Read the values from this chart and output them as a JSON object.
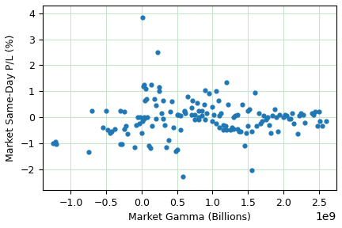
{
  "title": "",
  "xlabel": "Market Gamma (Billions)",
  "ylabel": "Market Same-Day P/L (%)",
  "xlim": [
    -1400000000.0,
    2750000000.0
  ],
  "ylim": [
    -2.8,
    4.3
  ],
  "scatter_color": "#1f77b4",
  "marker_size": 12,
  "grid_color": "#c8e6c9",
  "figsize": [
    4.32,
    2.88
  ],
  "dpi": 100,
  "x_data": [
    -1250000000.0,
    -1220000000.0,
    -1200000000.0,
    -750000000.0,
    -700000000.0,
    -550000000.0,
    -500000000.0,
    -480000000.0,
    -450000000.0,
    -420000000.0,
    -380000000.0,
    -300000000.0,
    -280000000.0,
    -250000000.0,
    -220000000.0,
    -200000000.0,
    -100000000.0,
    -80000000.0,
    -50000000.0,
    10000000.0,
    20000000.0,
    30000000.0,
    40000000.0,
    50000000.0,
    60000000.0,
    70000000.0,
    80000000.0,
    100000000.0,
    120000000.0,
    130000000.0,
    150000000.0,
    180000000.0,
    200000000.0,
    220000000.0,
    250000000.0,
    280000000.0,
    300000000.0,
    320000000.0,
    350000000.0,
    380000000.0,
    400000000.0,
    420000000.0,
    450000000.0,
    480000000.0,
    500000000.0,
    520000000.0,
    550000000.0,
    580000000.0,
    600000000.0,
    620000000.0,
    650000000.0,
    700000000.0,
    720000000.0,
    750000000.0,
    780000000.0,
    800000000.0,
    850000000.0,
    880000000.0,
    900000000.0,
    920000000.0,
    950000000.0,
    1000000000.0,
    1020000000.0,
    1050000000.0,
    1080000000.0,
    1100000000.0,
    1120000000.0,
    1150000000.0,
    1180000000.0,
    1200000000.0,
    1220000000.0,
    1250000000.0,
    1280000000.0,
    1300000000.0,
    1320000000.0,
    1350000000.0,
    1380000000.0,
    1400000000.0,
    1420000000.0,
    1450000000.0,
    1480000000.0,
    1500000000.0,
    1520000000.0,
    1550000000.0,
    1600000000.0,
    1620000000.0,
    1650000000.0,
    1680000000.0,
    1700000000.0,
    1720000000.0,
    1750000000.0,
    1780000000.0,
    1800000000.0,
    1820000000.0,
    1850000000.0,
    1880000000.0,
    1900000000.0,
    1920000000.0,
    1950000000.0,
    2000000000.0,
    2020000000.0,
    2050000000.0,
    2080000000.0,
    2100000000.0,
    2120000000.0,
    2150000000.0,
    2200000000.0,
    2220000000.0,
    2250000000.0,
    2280000000.0,
    2300000000.0,
    2400000000.0,
    2420000000.0,
    2450000000.0,
    2480000000.0,
    2500000000.0,
    2520000000.0,
    2550000000.0,
    2600000000.0,
    0.0,
    10000000.0,
    -20000000.0,
    30000000.0,
    -30000000.0,
    500000000.0,
    550000000.0,
    600000000.0,
    1000000000.0,
    1050000000.0,
    1100000000.0,
    1150000000.0,
    1200000000.0,
    1500000000.0,
    1550000000.0,
    800000000.0,
    850000000.0,
    900000000.0,
    -300000000.0,
    -250000000.0,
    200000000.0,
    250000000.0,
    300000000.0,
    700000000.0,
    750000000.0,
    800000000.0,
    1300000000.0,
    1350000000.0
  ],
  "y_data": [
    -1.0,
    -0.95,
    -1.05,
    -1.35,
    0.25,
    -0.4,
    0.25,
    -0.5,
    -0.6,
    -0.55,
    -0.45,
    0.25,
    -1.05,
    -0.45,
    -0.35,
    -0.65,
    -1.15,
    -0.3,
    0.0,
    3.85,
    1.2,
    -0.05,
    1.25,
    0.65,
    1.1,
    0.7,
    0.0,
    -1.1,
    -1.2,
    1.25,
    -0.35,
    0.7,
    -0.05,
    2.5,
    1.15,
    0.15,
    0.65,
    -0.3,
    -1.15,
    -0.9,
    0.2,
    0.6,
    -0.4,
    -1.3,
    -1.25,
    0.1,
    0.05,
    -2.3,
    0.2,
    0.15,
    0.8,
    0.1,
    0.65,
    -0.1,
    0.55,
    0.25,
    0.25,
    0.5,
    1.05,
    0.15,
    0.9,
    0.4,
    0.1,
    1.0,
    0.65,
    0.05,
    0.15,
    -0.3,
    -0.35,
    1.35,
    0.5,
    -0.5,
    -0.4,
    -0.45,
    0.05,
    0.1,
    -0.55,
    -0.55,
    0.5,
    -1.1,
    -0.6,
    0.25,
    0.3,
    -2.05,
    0.95,
    -0.35,
    0.15,
    -0.25,
    -0.15,
    0.05,
    -0.1,
    0.0,
    -0.3,
    -0.6,
    0.05,
    0.3,
    0.0,
    -0.55,
    0.1,
    0.0,
    0.1,
    0.05,
    -0.05,
    -0.05,
    0.15,
    -0.25,
    -0.65,
    0.05,
    0.15,
    0.1,
    -0.2,
    0.15,
    0.1,
    0.2,
    -0.35,
    0.2,
    -0.15,
    -0.35,
    -0.15,
    -0.6,
    -0.15,
    0.0,
    0.0,
    -0.25,
    0.1,
    -0.5,
    0.25,
    -0.15,
    -0.25,
    -0.4,
    -0.5,
    -0.5,
    -0.35,
    -0.55,
    0.0,
    0.05,
    -0.1,
    -1.05,
    0.2,
    0.45,
    1.0,
    -0.05,
    0.35,
    0.1,
    -0.1,
    0.0,
    -0.45
  ]
}
